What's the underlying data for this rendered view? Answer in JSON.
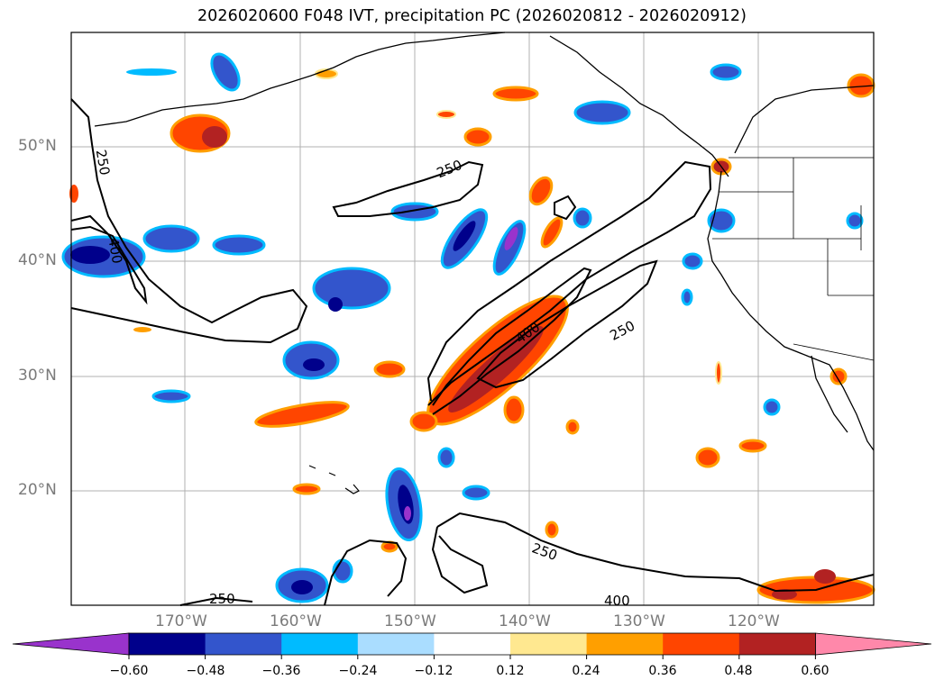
{
  "title": "2026020600 F048 IVT, precipitation PC (2026020812 - 2026020912)",
  "map": {
    "projection": "Mercator",
    "lon_range": [
      -180,
      -110
    ],
    "lat_range": [
      10,
      60
    ],
    "lat_labels": [
      "50°N",
      "40°N",
      "30°N",
      "20°N"
    ],
    "lon_labels": [
      "170°W",
      "160°W",
      "150°W",
      "140°W",
      "130°W",
      "120°W"
    ],
    "contour_labels": [
      "250",
      "250",
      "250",
      "250",
      "250",
      "400",
      "400",
      "400"
    ]
  },
  "colorbar": {
    "ticks": [
      "−0.60",
      "−0.48",
      "−0.36",
      "−0.24",
      "−0.12",
      "0.12",
      "0.24",
      "0.36",
      "0.48",
      "0.60"
    ],
    "colors": [
      "#9933cc",
      "#00008b",
      "#3355cc",
      "#00bbff",
      "#aaddff",
      "#ffffff",
      "#ffe890",
      "#ff9f00",
      "#ff4500",
      "#b22222",
      "#ff88aa"
    ]
  }
}
